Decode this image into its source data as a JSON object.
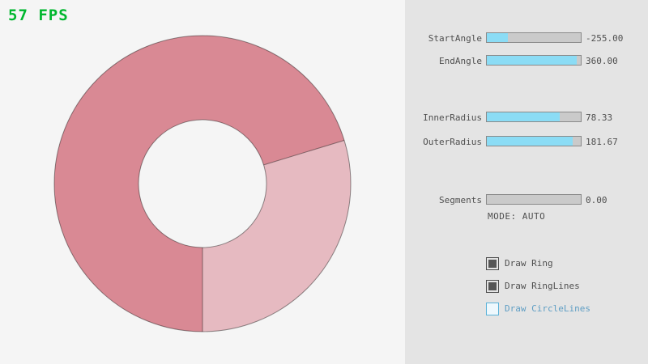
{
  "fps": "57 FPS",
  "colors": {
    "background": "#f5f5f5",
    "panel": "#e4e4e4",
    "accent": "#8bdcf5",
    "track": "#cacaca",
    "track_border": "#8a8a8a",
    "text": "#4f4f4f",
    "fps": "#00b72e",
    "ring_dark": "#d98994",
    "ring_light": "#e6bac1",
    "blue_border": "#5bb2d9",
    "blue_text": "#5f9ec4"
  },
  "sliders": [
    {
      "label": "StartAngle",
      "value": "-255.00",
      "fill_pct": 22
    },
    {
      "label": "EndAngle",
      "value": "360.00",
      "fill_pct": 96
    },
    {
      "label": "InnerRadius",
      "value": "78.33",
      "fill_pct": 78
    },
    {
      "label": "OuterRadius",
      "value": "181.67",
      "fill_pct": 91
    },
    {
      "label": "Segments",
      "value": "0.00",
      "fill_pct": 0
    }
  ],
  "mode_text": "MODE: AUTO",
  "checkboxes": [
    {
      "label": "Draw Ring",
      "checked": true
    },
    {
      "label": "Draw RingLines",
      "checked": true
    },
    {
      "label": "Draw CircleLines",
      "checked": false
    }
  ]
}
